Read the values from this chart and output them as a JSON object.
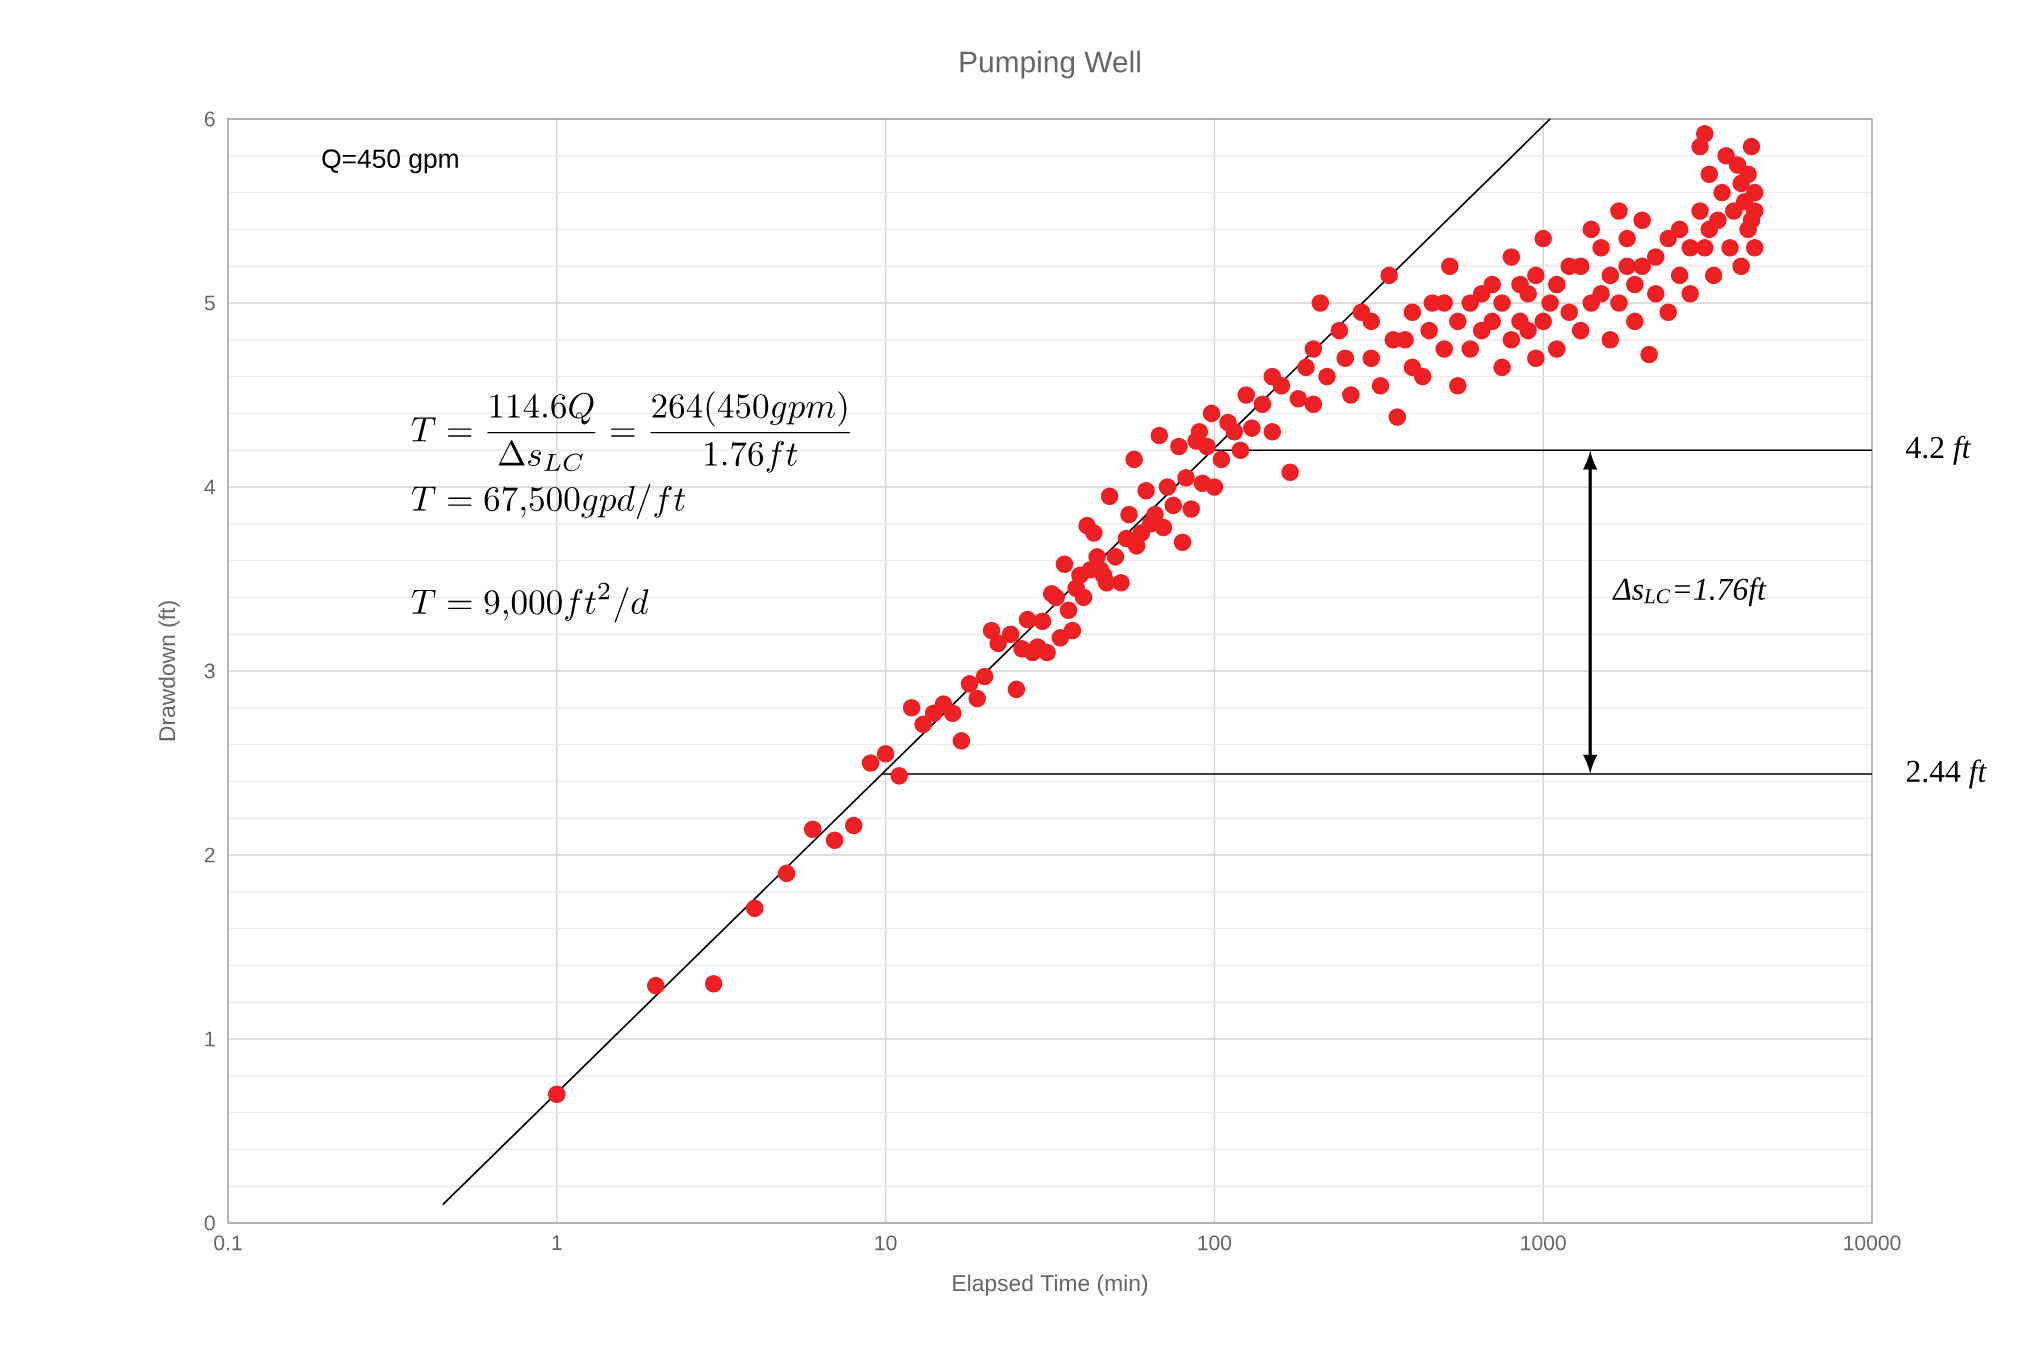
{
  "chart_data": {
    "type": "scatter",
    "title": "Pumping Well",
    "xlabel": "Elapsed Time (min)",
    "ylabel": "Drawdown (ft)",
    "log": "x",
    "grid": true,
    "xlim": [
      0.1,
      10000
    ],
    "xticks": [
      0.1,
      1,
      10,
      100,
      1000,
      10000
    ],
    "ylim": [
      0,
      6
    ],
    "yticks": [
      0,
      1,
      2,
      3,
      4,
      5,
      6
    ],
    "series": [
      {
        "marker": "circle",
        "color": "#ed2024",
        "x": [
          1,
          2,
          3,
          4,
          5,
          6,
          7,
          8,
          9,
          10,
          11,
          12,
          13,
          14,
          15,
          16,
          17,
          18,
          19,
          20,
          21,
          22,
          24,
          25,
          26,
          27,
          28,
          29,
          30,
          31,
          32,
          33,
          34,
          35,
          36,
          37,
          38,
          39,
          40,
          41,
          42,
          43,
          44,
          45,
          46,
          47,
          48,
          50,
          52,
          54,
          55,
          57,
          58,
          60,
          62,
          64,
          66,
          68,
          70,
          72,
          75,
          78,
          80,
          82,
          85,
          88,
          90,
          92,
          95,
          98,
          100,
          105,
          110,
          115,
          120,
          125,
          130,
          140,
          150,
          160,
          170,
          180,
          190,
          200,
          210,
          220,
          240,
          260,
          280,
          300,
          320,
          340,
          360,
          380,
          400,
          430,
          460,
          500,
          520,
          550,
          600,
          650,
          700,
          750,
          800,
          850,
          900,
          950,
          1000,
          1050,
          1100,
          1200,
          1300,
          1400,
          1500,
          1600,
          1700,
          1800,
          1900,
          2000,
          2100,
          2200,
          2400,
          2600,
          2800,
          3000,
          3100,
          3200,
          3300,
          3500,
          3700,
          3900,
          4000,
          4100,
          4200,
          4300,
          4400,
          150,
          200,
          250,
          300,
          350,
          400,
          450,
          500,
          550,
          600,
          650,
          700,
          750,
          800,
          850,
          900,
          950,
          1000,
          1100,
          1200,
          1300,
          1400,
          1500,
          1600,
          1700,
          1800,
          1900,
          2000,
          2200,
          2400,
          2600,
          2800,
          3000,
          3100,
          3200,
          3400,
          3600,
          3800,
          4000,
          4200,
          4400,
          4400,
          4300
        ],
        "values": [
          0.7,
          1.29,
          1.3,
          1.71,
          1.9,
          2.14,
          2.08,
          2.16,
          2.5,
          2.55,
          2.43,
          2.8,
          2.71,
          2.77,
          2.82,
          2.77,
          2.62,
          2.93,
          2.85,
          2.97,
          3.22,
          3.15,
          3.2,
          2.9,
          3.12,
          3.28,
          3.1,
          3.13,
          3.27,
          3.1,
          3.42,
          3.4,
          3.18,
          3.58,
          3.33,
          3.22,
          3.45,
          3.52,
          3.4,
          3.79,
          3.55,
          3.75,
          3.62,
          3.55,
          3.52,
          3.48,
          3.95,
          3.62,
          3.48,
          3.72,
          3.85,
          4.15,
          3.68,
          3.75,
          3.98,
          3.8,
          3.85,
          4.28,
          3.78,
          4.0,
          3.9,
          4.22,
          3.7,
          4.05,
          3.88,
          4.25,
          4.3,
          4.02,
          4.22,
          4.4,
          4.0,
          4.15,
          4.35,
          4.3,
          4.2,
          4.5,
          4.32,
          4.45,
          4.3,
          4.55,
          4.08,
          4.48,
          4.65,
          4.45,
          5.0,
          4.6,
          4.85,
          4.5,
          4.95,
          4.7,
          4.55,
          5.15,
          4.38,
          4.8,
          4.95,
          4.6,
          5.0,
          4.75,
          5.2,
          4.55,
          5.0,
          4.85,
          5.1,
          4.65,
          5.25,
          4.9,
          5.05,
          4.7,
          5.35,
          5.0,
          4.75,
          5.2,
          4.85,
          5.4,
          5.05,
          4.8,
          5.5,
          5.2,
          4.9,
          5.45,
          4.72,
          5.25,
          4.95,
          5.4,
          5.05,
          5.85,
          5.92,
          5.4,
          5.15,
          5.6,
          5.3,
          5.75,
          5.2,
          5.55,
          5.4,
          5.85,
          5.3,
          4.6,
          4.75,
          4.7,
          4.9,
          4.8,
          4.65,
          4.85,
          5.0,
          4.9,
          4.75,
          5.05,
          4.9,
          5.0,
          4.8,
          5.1,
          4.85,
          5.15,
          4.9,
          5.1,
          4.95,
          5.2,
          5.0,
          5.3,
          5.15,
          5.0,
          5.35,
          5.1,
          5.2,
          5.05,
          5.35,
          5.15,
          5.3,
          5.5,
          5.3,
          5.7,
          5.45,
          5.8,
          5.5,
          5.65,
          5.7,
          5.5,
          5.6,
          5.45
        ]
      },
      {
        "type": "line",
        "color": "#000000",
        "x": [
          0.45,
          1050
        ],
        "values": [
          0.1,
          6
        ]
      }
    ],
    "ref_lines": [
      {
        "axis": "y",
        "value": 4.2,
        "label": "4.2 *ft*"
      },
      {
        "axis": "y",
        "value": 2.44,
        "label": "2.44 *ft*"
      }
    ],
    "annotations": [
      "Q=450 gpm",
      "T=\\frac{114.6Q}{\\Delta s_{LC}}=\\frac{264(450gpm)}{1.76ft}",
      "T=67{,}500gpd/ft",
      "T=9{,}000ft^{2}/d",
      "Δs$_{LC}$=1.76ft"
    ]
  }
}
